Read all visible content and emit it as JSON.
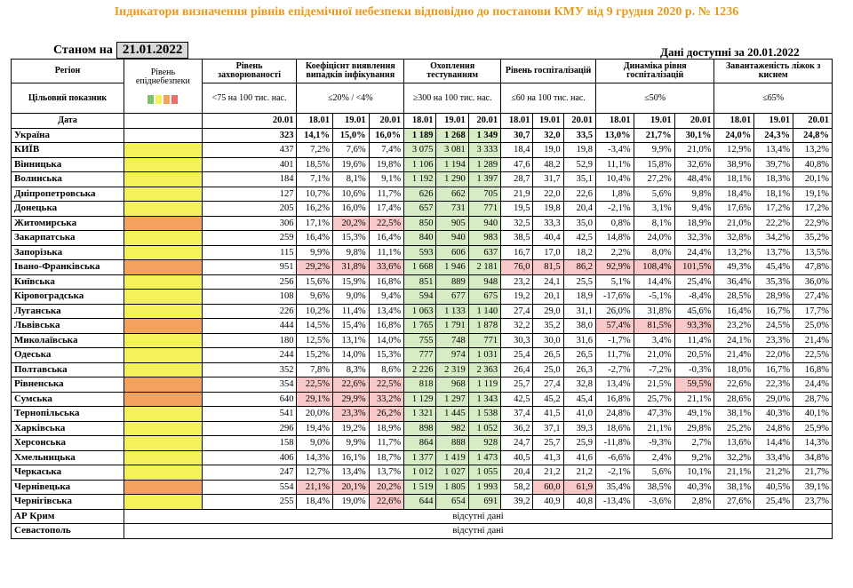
{
  "title": "Індикатори визначення рівнів епідемічної небезпеки відповідно до постанови КМУ від 9 грудня 2020 р. № 1236",
  "status_label": "Станом на",
  "status_date": "21.01.2022",
  "available_text": "Дані доступні за  20.01.2022",
  "headers": {
    "region": "Регіон",
    "target": "Цільовий показник",
    "date": "Дата",
    "level": "Рівень епіднебезпеки",
    "incidence": "Рівень захворюваності",
    "incidence_target": "<75 на 100 тис. нас.",
    "coef": "Коефіцієнт виявлення випадків інфікування",
    "coef_target": "≤20% / <4%",
    "testing": "Охоплення тестуванням",
    "testing_target": "≥300 на 100 тис. нас.",
    "hosp": "Рівень госпіталізацій",
    "hosp_target": "≤60 на 100 тис. нас.",
    "dyn": "Динаміка рівня госпіталізацій",
    "dyn_target": "≤50%",
    "beds": "Завантаженість ліжок з киснем",
    "beds_target": "≤65%"
  },
  "level_swatches": [
    "#7dc36b",
    "#f4f25a",
    "#f5a15e",
    "#ef6f6f"
  ],
  "dates": [
    "20.01",
    "18.01",
    "19.01",
    "20.01",
    "18.01",
    "19.01",
    "20.01",
    "18.01",
    "19.01",
    "20.01",
    "18.01",
    "19.01",
    "20.01",
    "18.01",
    "19.01",
    "20.01"
  ],
  "rows": [
    {
      "name": "Україна",
      "level": "",
      "vals": [
        "323",
        "14,1%",
        "15,0%",
        "16,0%",
        "1 189",
        "1 268",
        "1 349",
        "30,7",
        "32,0",
        "33,5",
        "13,0%",
        "21,7%",
        "30,1%",
        "24,0%",
        "24,3%",
        "24,8%"
      ],
      "hl": []
    },
    {
      "name": "КИЇВ",
      "level": "y",
      "vals": [
        "437",
        "7,2%",
        "7,6%",
        "7,4%",
        "3 075",
        "3 081",
        "3 333",
        "18,4",
        "19,0",
        "19,8",
        "-3,4%",
        "9,9%",
        "21,0%",
        "12,9%",
        "13,4%",
        "13,2%"
      ],
      "hl": []
    },
    {
      "name": "Вінницька",
      "level": "y",
      "vals": [
        "401",
        "18,5%",
        "19,6%",
        "19,8%",
        "1 106",
        "1 194",
        "1 289",
        "47,6",
        "48,2",
        "52,9",
        "11,1%",
        "15,8%",
        "32,6%",
        "38,9%",
        "39,7%",
        "40,8%"
      ],
      "hl": []
    },
    {
      "name": "Волинська",
      "level": "y",
      "vals": [
        "184",
        "7,1%",
        "8,1%",
        "9,1%",
        "1 192",
        "1 290",
        "1 397",
        "28,7",
        "31,7",
        "35,1",
        "10,4%",
        "27,2%",
        "48,4%",
        "18,1%",
        "18,3%",
        "20,1%"
      ],
      "hl": []
    },
    {
      "name": "Дніпропетровська",
      "level": "y",
      "vals": [
        "127",
        "10,7%",
        "10,6%",
        "11,7%",
        "626",
        "662",
        "705",
        "21,9",
        "22,0",
        "22,6",
        "1,8%",
        "5,6%",
        "9,8%",
        "18,4%",
        "18,1%",
        "19,1%"
      ],
      "hl": []
    },
    {
      "name": "Донецька",
      "level": "y",
      "vals": [
        "205",
        "16,2%",
        "16,0%",
        "17,4%",
        "657",
        "731",
        "771",
        "19,5",
        "19,8",
        "20,4",
        "-2,1%",
        "3,1%",
        "9,4%",
        "17,6%",
        "17,2%",
        "17,2%"
      ],
      "hl": []
    },
    {
      "name": "Житомирська",
      "level": "o",
      "vals": [
        "306",
        "17,1%",
        "20,2%",
        "22,5%",
        "850",
        "905",
        "940",
        "32,5",
        "33,3",
        "35,0",
        "0,8%",
        "8,1%",
        "18,9%",
        "21,0%",
        "22,2%",
        "22,9%"
      ],
      "hl": [
        2,
        3
      ]
    },
    {
      "name": "Закарпатська",
      "level": "y",
      "vals": [
        "259",
        "16,4%",
        "15,3%",
        "16,4%",
        "840",
        "940",
        "983",
        "38,5",
        "40,4",
        "42,5",
        "14,8%",
        "24,0%",
        "32,3%",
        "32,8%",
        "34,2%",
        "35,2%"
      ],
      "hl": []
    },
    {
      "name": "Запорізька",
      "level": "y",
      "vals": [
        "115",
        "9,9%",
        "9,8%",
        "11,1%",
        "593",
        "606",
        "637",
        "16,7",
        "17,0",
        "18,2",
        "2,2%",
        "8,0%",
        "24,4%",
        "13,2%",
        "13,7%",
        "13,5%"
      ],
      "hl": []
    },
    {
      "name": "Івано-Франківська",
      "level": "o",
      "vals": [
        "951",
        "29,2%",
        "31,8%",
        "33,6%",
        "1 668",
        "1 946",
        "2 181",
        "76,0",
        "81,5",
        "86,2",
        "92,9%",
        "108,4%",
        "101,5%",
        "49,3%",
        "45,4%",
        "47,8%"
      ],
      "hl": [
        1,
        2,
        3,
        7,
        8,
        9,
        10,
        11,
        12
      ]
    },
    {
      "name": "Київська",
      "level": "y",
      "vals": [
        "256",
        "15,6%",
        "15,9%",
        "16,8%",
        "851",
        "889",
        "948",
        "23,2",
        "24,1",
        "25,5",
        "5,1%",
        "14,4%",
        "25,4%",
        "36,4%",
        "35,3%",
        "36,0%"
      ],
      "hl": []
    },
    {
      "name": "Кіровоградська",
      "level": "y",
      "vals": [
        "108",
        "9,6%",
        "9,0%",
        "9,4%",
        "594",
        "677",
        "675",
        "19,2",
        "20,1",
        "18,9",
        "-17,6%",
        "-5,1%",
        "-8,4%",
        "28,5%",
        "28,9%",
        "27,4%"
      ],
      "hl": []
    },
    {
      "name": "Луганська",
      "level": "y",
      "vals": [
        "226",
        "10,2%",
        "11,4%",
        "13,4%",
        "1 063",
        "1 133",
        "1 140",
        "27,4",
        "29,0",
        "31,1",
        "26,0%",
        "31,8%",
        "45,6%",
        "16,4%",
        "16,7%",
        "17,7%"
      ],
      "hl": []
    },
    {
      "name": "Львівська",
      "level": "o",
      "vals": [
        "444",
        "14,5%",
        "15,4%",
        "16,8%",
        "1 765",
        "1 791",
        "1 878",
        "32,2",
        "35,2",
        "38,0",
        "57,4%",
        "81,5%",
        "93,3%",
        "23,2%",
        "24,5%",
        "25,0%"
      ],
      "hl": [
        10,
        11,
        12
      ]
    },
    {
      "name": "Миколаївська",
      "level": "y",
      "vals": [
        "180",
        "12,5%",
        "13,1%",
        "14,0%",
        "755",
        "748",
        "771",
        "30,3",
        "30,0",
        "31,6",
        "-1,7%",
        "3,4%",
        "11,4%",
        "24,1%",
        "23,3%",
        "21,4%"
      ],
      "hl": []
    },
    {
      "name": "Одеська",
      "level": "y",
      "vals": [
        "244",
        "15,2%",
        "14,0%",
        "15,3%",
        "777",
        "974",
        "1 031",
        "25,4",
        "26,5",
        "26,5",
        "11,7%",
        "21,0%",
        "20,5%",
        "21,4%",
        "22,0%",
        "22,5%"
      ],
      "hl": []
    },
    {
      "name": "Полтавська",
      "level": "y",
      "vals": [
        "352",
        "7,8%",
        "8,3%",
        "8,6%",
        "2 226",
        "2 319",
        "2 363",
        "26,4",
        "25,0",
        "26,3",
        "-2,7%",
        "-7,2%",
        "-0,3%",
        "18,0%",
        "16,7%",
        "16,8%"
      ],
      "hl": []
    },
    {
      "name": "Рівненська",
      "level": "o",
      "vals": [
        "354",
        "22,5%",
        "22,6%",
        "22,5%",
        "818",
        "968",
        "1 119",
        "25,7",
        "27,4",
        "32,8",
        "13,4%",
        "21,5%",
        "59,5%",
        "22,6%",
        "22,3%",
        "24,4%"
      ],
      "hl": [
        1,
        2,
        3,
        12
      ]
    },
    {
      "name": "Сумська",
      "level": "o",
      "vals": [
        "640",
        "29,1%",
        "29,9%",
        "33,2%",
        "1 129",
        "1 297",
        "1 343",
        "42,5",
        "45,2",
        "45,4",
        "16,8%",
        "25,7%",
        "21,1%",
        "28,6%",
        "29,0%",
        "28,7%"
      ],
      "hl": [
        1,
        2,
        3
      ]
    },
    {
      "name": "Тернопільська",
      "level": "y",
      "vals": [
        "541",
        "20,0%",
        "23,3%",
        "26,2%",
        "1 321",
        "1 445",
        "1 538",
        "37,4",
        "41,5",
        "41,0",
        "24,8%",
        "47,3%",
        "49,1%",
        "38,1%",
        "40,3%",
        "40,1%"
      ],
      "hl": [
        2,
        3
      ]
    },
    {
      "name": "Харківська",
      "level": "y",
      "vals": [
        "296",
        "19,4%",
        "19,2%",
        "18,9%",
        "898",
        "982",
        "1 052",
        "36,2",
        "37,1",
        "39,3",
        "18,6%",
        "21,1%",
        "29,8%",
        "25,2%",
        "24,8%",
        "25,9%"
      ],
      "hl": []
    },
    {
      "name": "Херсонська",
      "level": "y",
      "vals": [
        "158",
        "9,0%",
        "9,9%",
        "11,7%",
        "864",
        "888",
        "928",
        "24,7",
        "25,7",
        "25,9",
        "-11,8%",
        "-9,3%",
        "2,7%",
        "13,6%",
        "14,4%",
        "14,3%"
      ],
      "hl": []
    },
    {
      "name": "Хмельницька",
      "level": "y",
      "vals": [
        "406",
        "14,3%",
        "16,1%",
        "18,7%",
        "1 377",
        "1 419",
        "1 473",
        "40,5",
        "41,3",
        "41,6",
        "-6,6%",
        "2,4%",
        "9,2%",
        "32,2%",
        "33,4%",
        "34,8%"
      ],
      "hl": []
    },
    {
      "name": "Черкаська",
      "level": "y",
      "vals": [
        "247",
        "12,7%",
        "13,4%",
        "13,7%",
        "1 012",
        "1 027",
        "1 055",
        "20,4",
        "21,2",
        "21,2",
        "-2,1%",
        "5,6%",
        "10,1%",
        "21,1%",
        "21,2%",
        "21,7%"
      ],
      "hl": []
    },
    {
      "name": "Чернівецька",
      "level": "o",
      "vals": [
        "554",
        "21,1%",
        "20,1%",
        "20,2%",
        "1 519",
        "1 805",
        "1 993",
        "58,2",
        "60,0",
        "61,9",
        "35,4%",
        "38,5%",
        "40,3%",
        "38,1%",
        "40,5%",
        "39,1%"
      ],
      "hl": [
        1,
        2,
        3,
        8,
        9
      ]
    },
    {
      "name": "Чернігівська",
      "level": "y",
      "vals": [
        "255",
        "18,4%",
        "19,0%",
        "22,6%",
        "644",
        "654",
        "691",
        "39,2",
        "40,9",
        "40,8",
        "-13,4%",
        "-3,6%",
        "2,8%",
        "27,6%",
        "25,4%",
        "23,7%"
      ],
      "hl": [
        3
      ]
    }
  ],
  "missing_rows": [
    {
      "name": "АР Крим",
      "text": "відсутні дані"
    },
    {
      "name": "Севастополь",
      "text": "відсутні дані"
    }
  ]
}
